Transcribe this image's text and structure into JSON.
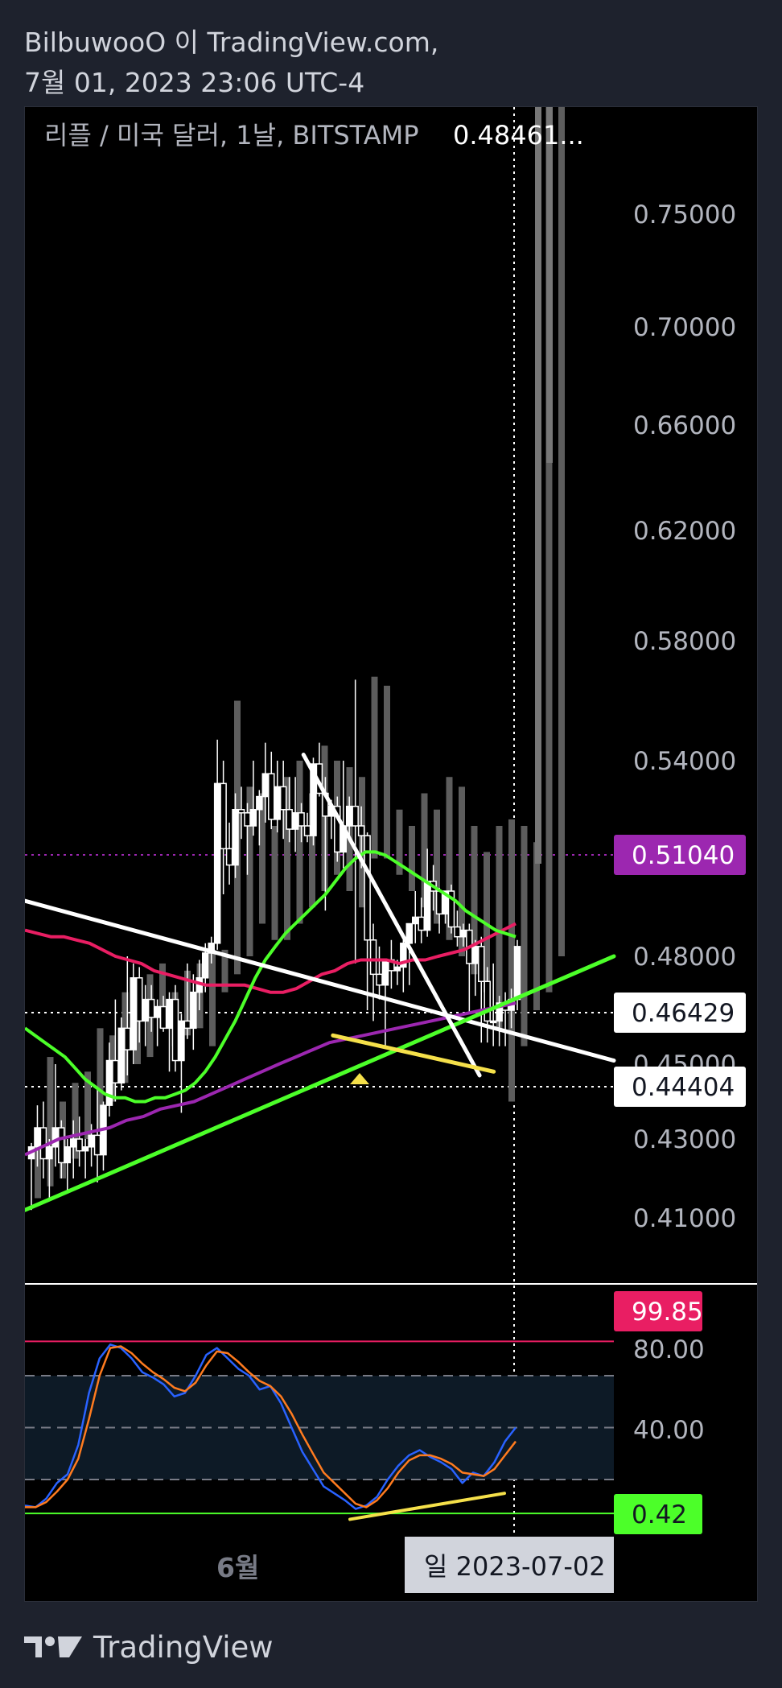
{
  "header": {
    "line1": "BilbuwooO 이 TradingView.com,",
    "line2": "7월 01, 2023 23:06 UTC-4"
  },
  "chart_data": {
    "type": "candlestick",
    "title": "리플 / 미국 달러, 1날, BITSTAMP",
    "last_price_text": "0.48461...",
    "price_axis": {
      "ticks": [
        "0.75000",
        "0.70000",
        "0.66000",
        "0.62000",
        "0.58000",
        "0.54000",
        "0.48000",
        "0.45000",
        "0.43000",
        "0.41000"
      ]
    },
    "price_labels": [
      {
        "text": "0.51040",
        "color": "#9c27b0"
      },
      {
        "text": "0.46429",
        "color": "#ffffff"
      },
      {
        "text": "0.44404",
        "color": "#ffffff"
      }
    ],
    "oscillator_axis": {
      "ticks": [
        "80.00",
        "40.00"
      ]
    },
    "oscillator_labels": [
      {
        "text": "99.85",
        "color": "#e91e63"
      },
      {
        "text": "0.42",
        "color": "#4cff29"
      }
    ],
    "time_axis": {
      "label": "6월",
      "crosshair_date": "일 2023-07-02"
    },
    "candles": [
      [
        0.425,
        0.429,
        0.412,
        0.428
      ],
      [
        0.428,
        0.439,
        0.423,
        0.433
      ],
      [
        0.433,
        0.44,
        0.42,
        0.425
      ],
      [
        0.425,
        0.43,
        0.415,
        0.428
      ],
      [
        0.428,
        0.45,
        0.423,
        0.433
      ],
      [
        0.433,
        0.435,
        0.42,
        0.424
      ],
      [
        0.424,
        0.43,
        0.417,
        0.428
      ],
      [
        0.428,
        0.435,
        0.42,
        0.43
      ],
      [
        0.43,
        0.436,
        0.423,
        0.427
      ],
      [
        0.427,
        0.43,
        0.42,
        0.428
      ],
      [
        0.428,
        0.434,
        0.423,
        0.431
      ],
      [
        0.431,
        0.444,
        0.419,
        0.426
      ],
      [
        0.426,
        0.44,
        0.422,
        0.439
      ],
      [
        0.439,
        0.456,
        0.436,
        0.451
      ],
      [
        0.451,
        0.468,
        0.44,
        0.445
      ],
      [
        0.445,
        0.463,
        0.443,
        0.46
      ],
      [
        0.46,
        0.48,
        0.447,
        0.454
      ],
      [
        0.454,
        0.478,
        0.45,
        0.474
      ],
      [
        0.474,
        0.477,
        0.456,
        0.462
      ],
      [
        0.462,
        0.472,
        0.455,
        0.468
      ],
      [
        0.468,
        0.472,
        0.459,
        0.463
      ],
      [
        0.463,
        0.468,
        0.455,
        0.466
      ],
      [
        0.466,
        0.469,
        0.459,
        0.46
      ],
      [
        0.46,
        0.47,
        0.448,
        0.468
      ],
      [
        0.468,
        0.472,
        0.448,
        0.451
      ],
      [
        0.451,
        0.464,
        0.437,
        0.462
      ],
      [
        0.462,
        0.478,
        0.457,
        0.46
      ],
      [
        0.46,
        0.475,
        0.454,
        0.47
      ],
      [
        0.47,
        0.479,
        0.465,
        0.474
      ],
      [
        0.474,
        0.484,
        0.47,
        0.481
      ],
      [
        0.481,
        0.486,
        0.478,
        0.484
      ],
      [
        0.484,
        0.547,
        0.482,
        0.533
      ],
      [
        0.533,
        0.54,
        0.499,
        0.513
      ],
      [
        0.513,
        0.521,
        0.502,
        0.508
      ],
      [
        0.508,
        0.53,
        0.504,
        0.525
      ],
      [
        0.525,
        0.532,
        0.516,
        0.524
      ],
      [
        0.524,
        0.527,
        0.505,
        0.52
      ],
      [
        0.52,
        0.54,
        0.517,
        0.525
      ],
      [
        0.525,
        0.531,
        0.514,
        0.529
      ],
      [
        0.529,
        0.546,
        0.521,
        0.536
      ],
      [
        0.536,
        0.543,
        0.519,
        0.522
      ],
      [
        0.522,
        0.54,
        0.518,
        0.532
      ],
      [
        0.532,
        0.54,
        0.516,
        0.525
      ],
      [
        0.525,
        0.535,
        0.515,
        0.519
      ],
      [
        0.519,
        0.535,
        0.512,
        0.524
      ],
      [
        0.524,
        0.527,
        0.515,
        0.52
      ],
      [
        0.52,
        0.524,
        0.515,
        0.517
      ],
      [
        0.517,
        0.541,
        0.514,
        0.539
      ],
      [
        0.539,
        0.546,
        0.529,
        0.53
      ],
      [
        0.53,
        0.535,
        0.494,
        0.523
      ],
      [
        0.523,
        0.528,
        0.516,
        0.526
      ],
      [
        0.526,
        0.529,
        0.509,
        0.512
      ],
      [
        0.512,
        0.54,
        0.507,
        0.52
      ],
      [
        0.52,
        0.529,
        0.517,
        0.526
      ],
      [
        0.526,
        0.567,
        0.478,
        0.52
      ],
      [
        0.52,
        0.526,
        0.507,
        0.517
      ],
      [
        0.517,
        0.518,
        0.465,
        0.485
      ],
      [
        0.485,
        0.49,
        0.462,
        0.475
      ],
      [
        0.475,
        0.483,
        0.468,
        0.472
      ],
      [
        0.472,
        0.478,
        0.455,
        0.479
      ],
      [
        0.479,
        0.485,
        0.471,
        0.476
      ],
      [
        0.476,
        0.479,
        0.472,
        0.477
      ],
      [
        0.477,
        0.485,
        0.47,
        0.484
      ],
      [
        0.484,
        0.49,
        0.472,
        0.49
      ],
      [
        0.49,
        0.5,
        0.484,
        0.492
      ],
      [
        0.492,
        0.498,
        0.484,
        0.488
      ],
      [
        0.488,
        0.513,
        0.486,
        0.503
      ],
      [
        0.503,
        0.508,
        0.494,
        0.5
      ],
      [
        0.5,
        0.501,
        0.487,
        0.493
      ],
      [
        0.493,
        0.5,
        0.49,
        0.5
      ],
      [
        0.5,
        0.502,
        0.487,
        0.489
      ],
      [
        0.489,
        0.494,
        0.483,
        0.486
      ],
      [
        0.486,
        0.49,
        0.483,
        0.488
      ],
      [
        0.488,
        0.49,
        0.464,
        0.478
      ],
      [
        0.478,
        0.485,
        0.469,
        0.483
      ],
      [
        0.483,
        0.486,
        0.456,
        0.473
      ],
      [
        0.473,
        0.477,
        0.456,
        0.462
      ],
      [
        0.462,
        0.478,
        0.455,
        0.462
      ],
      [
        0.462,
        0.469,
        0.455,
        0.467
      ],
      [
        0.467,
        0.47,
        0.455,
        0.465
      ],
      [
        0.465,
        0.471,
        0.46,
        0.468
      ],
      [
        0.468,
        0.485,
        0.465,
        0.483
      ]
    ],
    "indicators": {
      "ma_green": [
        0.46,
        0.458,
        0.456,
        0.454,
        0.452,
        0.449,
        0.446,
        0.444,
        0.442,
        0.441,
        0.441,
        0.44,
        0.44,
        0.441,
        0.441,
        0.442,
        0.443,
        0.445,
        0.448,
        0.452,
        0.457,
        0.462,
        0.468,
        0.474,
        0.479,
        0.483,
        0.487,
        0.49,
        0.493,
        0.496,
        0.499,
        0.503,
        0.507,
        0.51,
        0.512,
        0.512,
        0.511,
        0.509,
        0.507,
        0.505,
        0.503,
        0.501,
        0.499,
        0.497,
        0.494,
        0.492,
        0.49,
        0.488,
        0.487,
        0.486
      ],
      "ma_red": [
        0.488,
        0.487,
        0.486,
        0.486,
        0.485,
        0.484,
        0.482,
        0.48,
        0.479,
        0.478,
        0.476,
        0.475,
        0.474,
        0.473,
        0.472,
        0.472,
        0.472,
        0.472,
        0.471,
        0.47,
        0.47,
        0.471,
        0.473,
        0.475,
        0.476,
        0.478,
        0.479,
        0.479,
        0.479,
        0.478,
        0.479,
        0.479,
        0.48,
        0.481,
        0.482,
        0.484,
        0.486,
        0.488,
        0.49
      ],
      "ma_purple": [
        0.426,
        0.428,
        0.43,
        0.431,
        0.432,
        0.433,
        0.435,
        0.436,
        0.438,
        0.439,
        0.44,
        0.442,
        0.444,
        0.446,
        0.448,
        0.45,
        0.452,
        0.454,
        0.456,
        0.457,
        0.458,
        0.459,
        0.46,
        0.461,
        0.462,
        0.463,
        0.464,
        0.465,
        0.466,
        0.467
      ]
    },
    "trendlines": [
      {
        "color": "#ffffff",
        "from": [
          0,
          0.497
        ],
        "to": [
          1,
          0.451
        ]
      },
      {
        "color": "#4cff29",
        "from": [
          0,
          0.412
        ],
        "to": [
          1,
          0.48
        ]
      },
      {
        "color": "#ffffff",
        "from": [
          0.473,
          0.542
        ],
        "to": [
          0.772,
          0.447
        ]
      },
      {
        "color": "#f5e04a",
        "from": [
          0.523,
          0.458
        ],
        "to": [
          0.796,
          0.448
        ]
      }
    ],
    "stoch_k": [
      5,
      4,
      9,
      18,
      23,
      40,
      70,
      90,
      98,
      96,
      90,
      82,
      79,
      75,
      68,
      70,
      80,
      92,
      96,
      90,
      84,
      80,
      72,
      74,
      64,
      50,
      36,
      26,
      16,
      12,
      8,
      3,
      5,
      10,
      20,
      28,
      34,
      37,
      33,
      30,
      26,
      18,
      24,
      22,
      30,
      42,
      50
    ],
    "stoch_d": [
      4,
      4,
      7,
      13,
      20,
      32,
      55,
      80,
      96,
      97,
      93,
      87,
      82,
      78,
      73,
      71,
      76,
      86,
      94,
      93,
      88,
      82,
      77,
      74,
      68,
      58,
      46,
      35,
      24,
      18,
      12,
      6,
      4,
      8,
      15,
      24,
      31,
      34,
      34,
      32,
      29,
      24,
      23,
      22,
      26,
      34,
      42
    ]
  },
  "footer": {
    "brand": "TradingView"
  }
}
